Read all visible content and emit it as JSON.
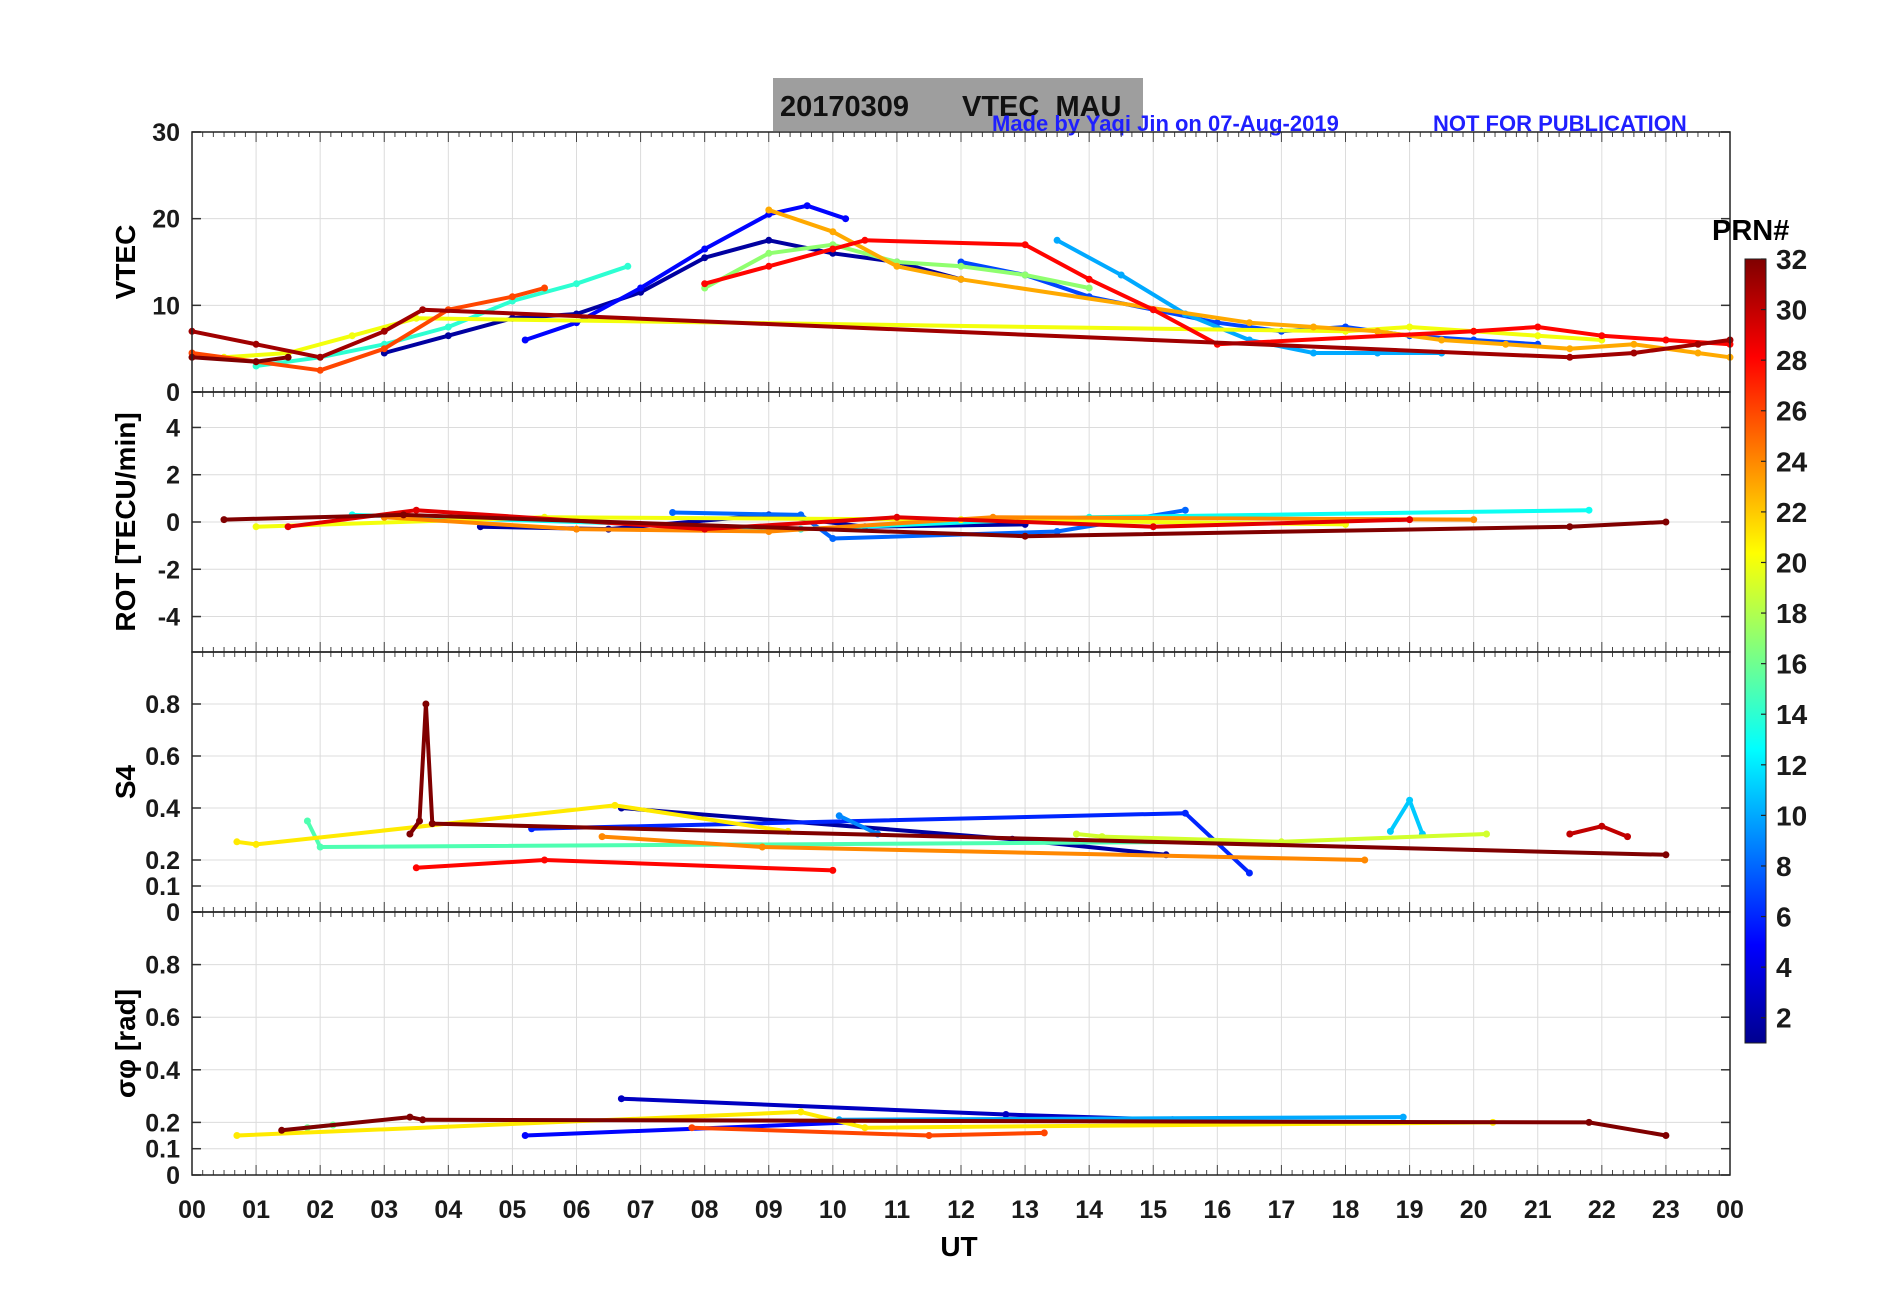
{
  "chart_data": {
    "type": "line",
    "banner": {
      "date": "20170309",
      "title": "VTEC  MAU",
      "background": "#9e9e9e"
    },
    "credit": "Made by Yaqi Jin on 07-Aug-2019",
    "notice": "NOT FOR PUBLICATION",
    "credit_color": "#1f1fff",
    "xlabel": "UT",
    "x_ticks": [
      "00",
      "01",
      "02",
      "03",
      "04",
      "05",
      "06",
      "07",
      "08",
      "09",
      "10",
      "11",
      "12",
      "13",
      "14",
      "15",
      "16",
      "17",
      "18",
      "19",
      "20",
      "21",
      "22",
      "23",
      "00"
    ],
    "xlim": [
      0,
      24
    ],
    "grid": true,
    "colorbar": {
      "title": "PRN#",
      "range": [
        1,
        32
      ],
      "ticks": [
        "2",
        "4",
        "6",
        "8",
        "10",
        "12",
        "14",
        "16",
        "18",
        "20",
        "22",
        "24",
        "26",
        "28",
        "30",
        "32"
      ],
      "colormap": "jet"
    },
    "panels": [
      {
        "id": "vtec",
        "ylabel": "VTEC",
        "ylim": [
          0,
          30
        ],
        "yticks": [
          "0",
          "10",
          "20",
          "30"
        ],
        "series": [
          {
            "prn": 2,
            "x": [
              3.0,
              4.0,
              5.0,
              6.0,
              7.0,
              8.0,
              9.0,
              10.0,
              11.0,
              12.0
            ],
            "y": [
              4.5,
              6.5,
              8.5,
              9.0,
              11.5,
              15.5,
              17.5,
              16.0,
              15.0,
              13.0
            ]
          },
          {
            "prn": 5,
            "x": [
              5.2,
              6.0,
              7.0,
              8.0,
              9.0,
              9.6,
              10.2
            ],
            "y": [
              6.0,
              8.0,
              12.0,
              16.5,
              20.5,
              21.5,
              20.0
            ]
          },
          {
            "prn": 7,
            "x": [
              12.0,
              13.0,
              14.0,
              15.0,
              16.0,
              17.0,
              18.0,
              19.0,
              20.0,
              21.0
            ],
            "y": [
              15.0,
              13.5,
              11.0,
              9.5,
              8.0,
              7.0,
              7.5,
              6.5,
              6.0,
              5.5
            ]
          },
          {
            "prn": 10,
            "x": [
              13.5,
              14.5,
              15.5,
              16.5,
              17.5,
              18.5,
              19.5
            ],
            "y": [
              17.5,
              13.5,
              9.0,
              6.0,
              4.5,
              4.5,
              4.5
            ]
          },
          {
            "prn": 14,
            "x": [
              1.0,
              2.0,
              3.0,
              4.0,
              5.0,
              6.0,
              6.8
            ],
            "y": [
              3.0,
              4.0,
              5.5,
              7.5,
              10.5,
              12.5,
              14.5
            ]
          },
          {
            "prn": 17,
            "x": [
              8.0,
              9.0,
              10.0,
              11.0,
              12.0,
              13.0,
              14.0
            ],
            "y": [
              12.0,
              16.0,
              17.0,
              15.0,
              14.5,
              13.5,
              12.0
            ]
          },
          {
            "prn": 20,
            "x": [
              0.5,
              1.5,
              2.5,
              3.5,
              18.0,
              19.0,
              20.0,
              21.0,
              22.0
            ],
            "y": [
              4.0,
              4.5,
              6.5,
              8.5,
              7.0,
              7.5,
              7.0,
              6.5,
              6.0
            ]
          },
          {
            "prn": 23,
            "x": [
              9.0,
              10.0,
              11.0,
              12.0,
              16.5,
              17.5,
              18.5,
              19.5,
              20.5,
              21.5,
              22.5,
              23.5,
              24.0
            ],
            "y": [
              21.0,
              18.5,
              14.5,
              13.0,
              8.0,
              7.5,
              7.0,
              6.0,
              5.5,
              5.0,
              5.5,
              4.5,
              4.0
            ]
          },
          {
            "prn": 26,
            "x": [
              0.0,
              1.0,
              2.0,
              3.0,
              4.0,
              5.0,
              5.5
            ],
            "y": [
              4.5,
              3.5,
              2.5,
              5.0,
              9.5,
              11.0,
              12.0
            ]
          },
          {
            "prn": 28,
            "x": [
              8.0,
              9.0,
              10.0,
              10.5,
              13.0,
              14.0,
              15.0,
              16.0,
              20.0,
              21.0,
              22.0,
              23.0,
              24.0
            ],
            "y": [
              12.5,
              14.5,
              16.5,
              17.5,
              17.0,
              13.0,
              9.5,
              5.5,
              7.0,
              7.5,
              6.5,
              6.0,
              5.5
            ]
          },
          {
            "prn": 31,
            "x": [
              0.0,
              1.0,
              2.0,
              3.0,
              3.6,
              21.5,
              22.5,
              23.5,
              24.0
            ],
            "y": [
              7.0,
              5.5,
              4.0,
              7.0,
              9.5,
              4.0,
              4.5,
              5.5,
              6.0
            ]
          },
          {
            "prn": 32,
            "x": [
              0.0,
              1.0,
              1.5
            ],
            "y": [
              4.0,
              3.5,
              4.0
            ]
          }
        ]
      },
      {
        "id": "rot",
        "ylabel": "ROT [TECU/min]",
        "ylim": [
          -5.5,
          5.5
        ],
        "yticks": [
          "-4",
          "-2",
          "0",
          "2",
          "4"
        ],
        "series": [
          {
            "prn": 2,
            "x": [
              4.5,
              6.5,
              9.0,
              10.5,
              13.0
            ],
            "y": [
              -0.2,
              -0.3,
              0.3,
              -0.2,
              -0.1
            ]
          },
          {
            "prn": 8,
            "x": [
              7.5,
              9.5,
              10.0,
              13.5,
              15.5
            ],
            "y": [
              0.4,
              0.3,
              -0.7,
              -0.4,
              0.5
            ]
          },
          {
            "prn": 13,
            "x": [
              2.5,
              9.5,
              14.0,
              21.8
            ],
            "y": [
              0.3,
              -0.3,
              0.2,
              0.5
            ]
          },
          {
            "prn": 20,
            "x": [
              1.0,
              5.5,
              12.0,
              18.0
            ],
            "y": [
              -0.2,
              0.2,
              0.1,
              -0.1
            ]
          },
          {
            "prn": 24,
            "x": [
              3.0,
              6.0,
              9.0,
              12.5,
              20.0
            ],
            "y": [
              0.2,
              -0.3,
              -0.4,
              0.2,
              0.1
            ]
          },
          {
            "prn": 29,
            "x": [
              1.5,
              3.5,
              8.0,
              11.0,
              15.0,
              19.0
            ],
            "y": [
              -0.2,
              0.5,
              -0.3,
              0.2,
              -0.2,
              0.1
            ]
          },
          {
            "prn": 32,
            "x": [
              0.5,
              3.3,
              13.0,
              21.5,
              23.0
            ],
            "y": [
              0.1,
              0.3,
              -0.6,
              -0.2,
              0.0
            ]
          }
        ]
      },
      {
        "id": "s4",
        "ylabel": "S4",
        "ylim": [
          0,
          1.0
        ],
        "yticks": [
          "0",
          "0.1",
          "0.2",
          "0.4",
          "0.6",
          "0.8"
        ],
        "series": [
          {
            "prn": 2,
            "x": [
              6.7,
              12.8,
              15.2
            ],
            "y": [
              0.4,
              0.28,
              0.22
            ]
          },
          {
            "prn": 6,
            "x": [
              5.3,
              15.5,
              16.5
            ],
            "y": [
              0.32,
              0.38,
              0.15
            ]
          },
          {
            "prn": 9,
            "x": [
              10.1,
              10.7
            ],
            "y": [
              0.37,
              0.3
            ]
          },
          {
            "prn": 11,
            "x": [
              18.7,
              19.0,
              19.2
            ],
            "y": [
              0.31,
              0.43,
              0.3
            ]
          },
          {
            "prn": 15,
            "x": [
              1.8,
              2.0,
              16.0
            ],
            "y": [
              0.35,
              0.25,
              0.27
            ]
          },
          {
            "prn": 19,
            "x": [
              13.8,
              14.2,
              17.0,
              20.2
            ],
            "y": [
              0.3,
              0.29,
              0.27,
              0.3
            ]
          },
          {
            "prn": 21,
            "x": [
              0.7,
              1.0,
              6.6,
              9.3
            ],
            "y": [
              0.27,
              0.26,
              0.41,
              0.31
            ]
          },
          {
            "prn": 24,
            "x": [
              6.4,
              8.9,
              18.3
            ],
            "y": [
              0.29,
              0.25,
              0.2
            ]
          },
          {
            "prn": 28,
            "x": [
              3.5,
              5.5,
              10.0
            ],
            "y": [
              0.17,
              0.2,
              0.16
            ]
          },
          {
            "prn": 30,
            "x": [
              21.5,
              22.0,
              22.4
            ],
            "y": [
              0.3,
              0.33,
              0.29
            ]
          },
          {
            "prn": 32,
            "x": [
              3.4,
              3.55,
              3.65,
              3.75,
              23.0
            ],
            "y": [
              0.3,
              0.35,
              0.8,
              0.34,
              0.22
            ]
          }
        ]
      },
      {
        "id": "sigma",
        "ylabel": "σφ [rad]",
        "ylim": [
          0,
          1.0
        ],
        "yticks": [
          "0",
          "0.1",
          "0.2",
          "0.4",
          "0.6",
          "0.8"
        ],
        "series": [
          {
            "prn": 3,
            "x": [
              6.7,
              12.7,
              15.3
            ],
            "y": [
              0.29,
              0.23,
              0.21
            ]
          },
          {
            "prn": 5,
            "x": [
              5.2,
              10.3
            ],
            "y": [
              0.15,
              0.2
            ]
          },
          {
            "prn": 10,
            "x": [
              18.9,
              10.1
            ],
            "y": [
              0.22,
              0.21
            ]
          },
          {
            "prn": 16,
            "x": [
              1.8,
              2.2
            ],
            "y": [
              0.18,
              0.19
            ]
          },
          {
            "prn": 21,
            "x": [
              0.7,
              9.5,
              10.5,
              20.3
            ],
            "y": [
              0.15,
              0.24,
              0.18,
              0.2
            ]
          },
          {
            "prn": 26,
            "x": [
              7.8,
              11.5,
              13.3
            ],
            "y": [
              0.18,
              0.15,
              0.16
            ]
          },
          {
            "prn": 32,
            "x": [
              1.4,
              3.4,
              3.6,
              21.8,
              23.0
            ],
            "y": [
              0.17,
              0.22,
              0.21,
              0.2,
              0.15
            ]
          }
        ]
      }
    ]
  }
}
